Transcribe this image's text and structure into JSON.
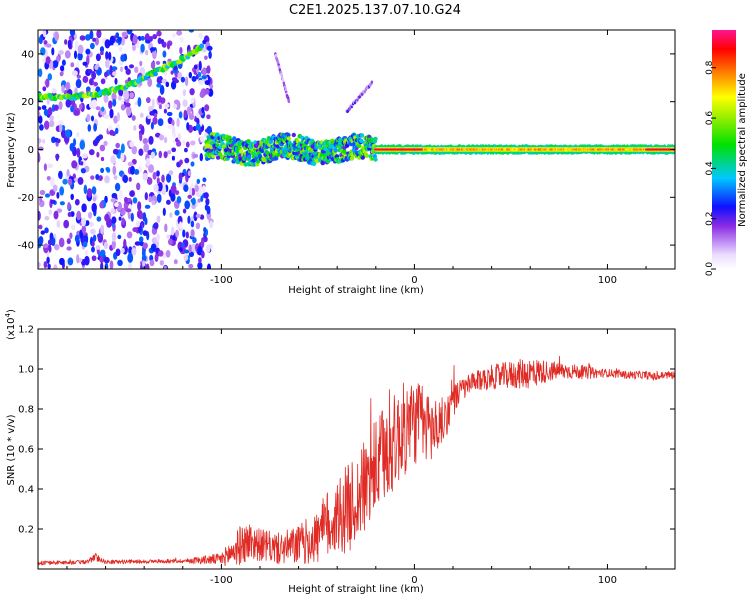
{
  "title": "C2E1.2025.137.07.10.G24",
  "colors": {
    "snr_line": "#e02a24",
    "axis": "#000000",
    "background": "#ffffff"
  },
  "chart_data": [
    {
      "type": "heatmap",
      "name": "spectrogram",
      "xlabel": "Height of straight line (km)",
      "ylabel": "Frequency (Hz)",
      "xlim": [
        -195,
        135
      ],
      "ylim": [
        -50,
        50
      ],
      "x_ticks": [
        -100,
        0,
        100
      ],
      "x_tick_labels": [
        "-100",
        "0",
        "100"
      ],
      "y_ticks": [
        -40,
        -20,
        0,
        20,
        40
      ],
      "y_tick_labels": [
        "-40",
        "-20",
        "0",
        "20",
        "40"
      ],
      "colorbar": {
        "label": "Normalized spectral amplitude",
        "range": [
          0,
          0.95
        ],
        "ticks": [
          0.0,
          0.2,
          0.4,
          0.6,
          0.8
        ],
        "tick_labels": [
          "0.0",
          "0.2",
          "0.4",
          "0.6",
          "0.8"
        ]
      },
      "features": [
        {
          "kind": "noise",
          "x_range": [
            -195,
            -105
          ],
          "freq_range": [
            -50,
            50
          ],
          "amplitude": 0.15
        },
        {
          "kind": "ridge",
          "x": [
            -195,
            -175,
            -165,
            -150,
            -140,
            -130,
            -120,
            -110
          ],
          "freq": [
            22,
            22,
            23,
            26,
            30,
            34,
            38,
            43
          ],
          "amplitude": 0.55
        },
        {
          "kind": "band",
          "x_range": [
            -108,
            -20
          ],
          "freq_center": 0,
          "freq_halfwidth": 5,
          "amplitude": 0.45
        },
        {
          "kind": "streak",
          "x": [
            -35,
            -22
          ],
          "freq": [
            16,
            28
          ],
          "amplitude": 0.15
        },
        {
          "kind": "streak",
          "x": [
            -72,
            -65
          ],
          "freq": [
            40,
            20
          ],
          "amplitude": 0.12
        },
        {
          "kind": "line",
          "x_range": [
            -20,
            135
          ],
          "freq_center": 0,
          "freq_halfwidth": 1.5,
          "amplitude": 0.9
        }
      ]
    },
    {
      "type": "line",
      "name": "snr",
      "xlabel": "Height of straight line (km)",
      "ylabel": "SNR (10 * v/v)",
      "y_multiplier": "(x10",
      "y_multiplier_exp": "4",
      "y_multiplier_close": ")",
      "xlim": [
        -195,
        135
      ],
      "ylim": [
        0,
        1.2
      ],
      "x_ticks": [
        -100,
        0,
        100
      ],
      "x_tick_labels": [
        "-100",
        "0",
        "100"
      ],
      "y_ticks": [
        0.2,
        0.4,
        0.6,
        0.8,
        1.0,
        1.2
      ],
      "y_tick_labels": [
        "0.2",
        "0.4",
        "0.6",
        "0.8",
        "1.0",
        "1.2"
      ],
      "series": [
        {
          "name": "SNR",
          "x": [
            -195,
            -170,
            -165,
            -160,
            -120,
            -100,
            -95,
            -90,
            -85,
            -80,
            -70,
            -60,
            -50,
            -45,
            -40,
            -35,
            -30,
            -25,
            -20,
            -15,
            -10,
            -5,
            0,
            5,
            10,
            15,
            20,
            25,
            30,
            40,
            50,
            60,
            70,
            80,
            90,
            100,
            110,
            120,
            125,
            130,
            135
          ],
          "mean": [
            0.03,
            0.035,
            0.06,
            0.035,
            0.04,
            0.05,
            0.08,
            0.12,
            0.14,
            0.12,
            0.1,
            0.12,
            0.16,
            0.22,
            0.26,
            0.3,
            0.34,
            0.42,
            0.5,
            0.58,
            0.64,
            0.7,
            0.74,
            0.72,
            0.7,
            0.74,
            0.84,
            0.9,
            0.93,
            0.96,
            0.97,
            0.98,
            0.99,
            0.99,
            0.98,
            0.98,
            0.97,
            0.97,
            0.96,
            0.97,
            0.97
          ],
          "noise": [
            0.01,
            0.01,
            0.02,
            0.01,
            0.01,
            0.03,
            0.07,
            0.1,
            0.1,
            0.08,
            0.08,
            0.1,
            0.14,
            0.18,
            0.2,
            0.22,
            0.22,
            0.24,
            0.24,
            0.26,
            0.24,
            0.24,
            0.22,
            0.2,
            0.16,
            0.12,
            0.08,
            0.06,
            0.05,
            0.06,
            0.07,
            0.08,
            0.05,
            0.04,
            0.03,
            0.02,
            0.02,
            0.02,
            0.02,
            0.02,
            0.02
          ]
        }
      ]
    }
  ]
}
